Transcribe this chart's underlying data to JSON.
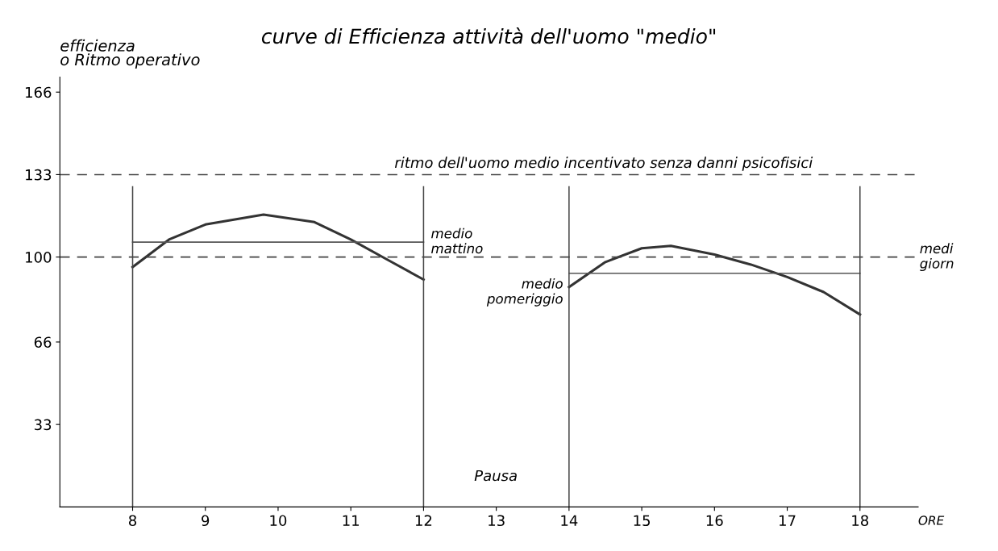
{
  "chart_data": {
    "type": "line",
    "title": "curve di Efficienza attività dell'uomo \"medio\"",
    "xlabel": "ORE",
    "ylabel": "efficienza\no Ritmo operativo",
    "xlim": [
      7,
      18.8
    ],
    "xticks": [
      8,
      9,
      10,
      11,
      12,
      13,
      14,
      15,
      16,
      17,
      18
    ],
    "ylim": [
      0,
      172
    ],
    "yticks": [
      33,
      66,
      100,
      133,
      166
    ],
    "series": [
      {
        "color": "#333333",
        "x": [
          8,
          8.5,
          9,
          9.8,
          10.5,
          11,
          11.5,
          12
        ],
        "values": [
          96,
          107,
          113,
          117,
          114,
          107,
          99,
          91
        ]
      },
      {
        "color": "#333333",
        "x": [
          14,
          14.5,
          15,
          15.4,
          16,
          16.5,
          17,
          17.5,
          18
        ],
        "values": [
          88,
          98,
          103.5,
          104.5,
          101,
          97,
          92,
          86,
          77
        ]
      },
      {
        "name": "medio\nmattino",
        "color": "#555555",
        "x": [
          8,
          12
        ],
        "values": [
          106,
          106
        ]
      },
      {
        "name": "medio\npomeriggio",
        "color": "#555555",
        "x": [
          14,
          18
        ],
        "values": [
          93.5,
          93.5
        ]
      }
    ],
    "ref_lines": [
      {
        "axis": "y",
        "value": 133,
        "label": "ritmo dell'uomo medio incentivato senza danni psicofisici",
        "color": "#444444",
        "line_style": "dashed"
      },
      {
        "axis": "y",
        "value": 100,
        "label": "medi\ngiorn",
        "color": "#444444",
        "line_style": "dashed"
      },
      {
        "axis": "x",
        "value": 8,
        "color": "#444444",
        "line_style": "solid"
      },
      {
        "axis": "x",
        "value": 12,
        "color": "#444444",
        "line_style": "solid"
      },
      {
        "axis": "x",
        "value": 14,
        "color": "#444444",
        "line_style": "solid"
      },
      {
        "axis": "x",
        "value": 18,
        "color": "#444444",
        "line_style": "solid"
      }
    ],
    "annotations": [
      "Pausa"
    ],
    "grid": false,
    "legend": false
  }
}
